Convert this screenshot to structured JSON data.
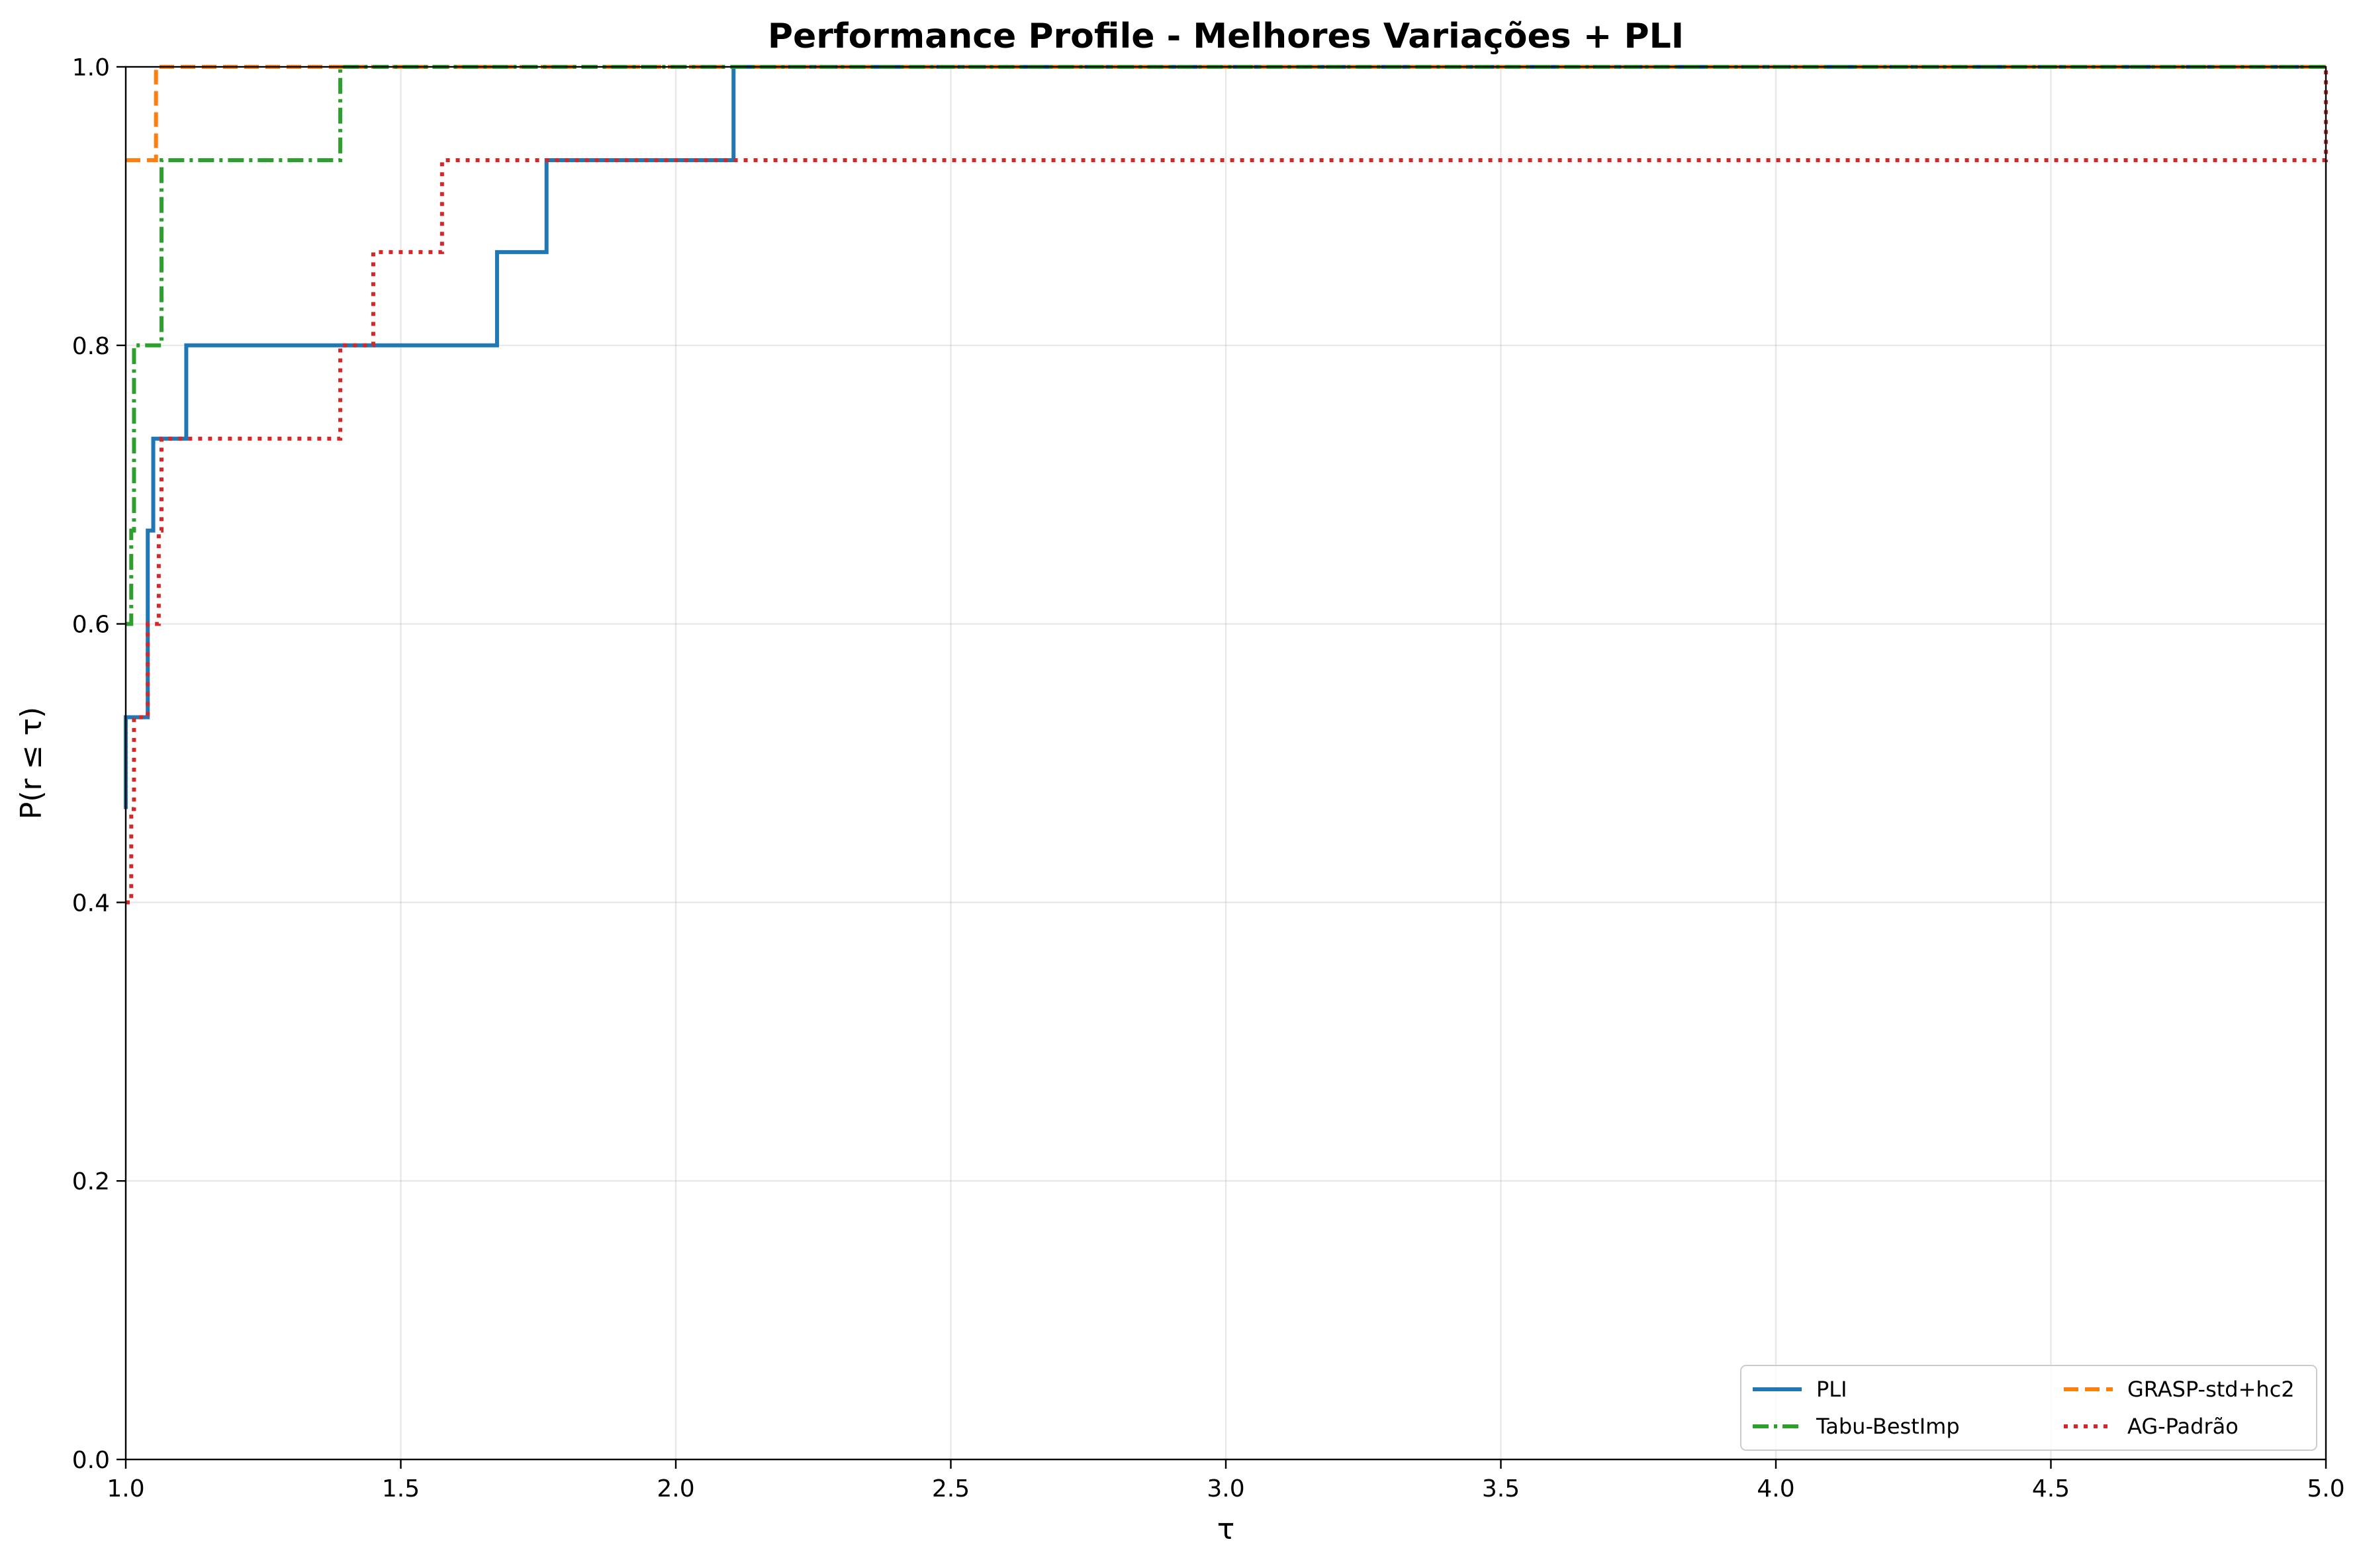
{
  "chart_data": {
    "type": "line",
    "title": "Performance Profile - Melhores Variações + PLI",
    "xlabel": "τ",
    "ylabel": "P(r ≤ τ)",
    "xlim": [
      1.0,
      5.0
    ],
    "ylim": [
      0.0,
      1.0
    ],
    "xticks": [
      "1.0",
      "1.5",
      "2.0",
      "2.5",
      "3.0",
      "3.5",
      "4.0",
      "4.5",
      "5.0"
    ],
    "yticks": [
      "0.0",
      "0.2",
      "0.4",
      "0.6",
      "0.8",
      "1.0"
    ],
    "grid": true,
    "legend_position": "lower-right",
    "legend_columns": 2,
    "series": [
      {
        "name": "PLI",
        "color": "#1f77b4",
        "style": "solid",
        "x": [
          1.0,
          1.0,
          1.04,
          1.05,
          1.11,
          1.675,
          1.765,
          2.105,
          5.0
        ],
        "y": [
          0.467,
          0.533,
          0.667,
          0.733,
          0.8,
          0.867,
          0.933,
          1.0,
          1.0
        ]
      },
      {
        "name": "GRASP-std+hc2",
        "color": "#ff7f0e",
        "style": "dashed",
        "x": [
          1.0,
          1.055,
          5.0
        ],
        "y": [
          0.933,
          1.0,
          1.0
        ]
      },
      {
        "name": "Tabu-BestImp",
        "color": "#2ca02c",
        "style": "dashdot",
        "x": [
          1.0,
          1.01,
          1.015,
          1.065,
          1.39,
          5.0
        ],
        "y": [
          0.6,
          0.667,
          0.8,
          0.933,
          1.0,
          1.0
        ]
      },
      {
        "name": "AG-Padrão",
        "color": "#d62728",
        "style": "dotted",
        "x": [
          1.0,
          1.01,
          1.015,
          1.04,
          1.06,
          1.065,
          1.39,
          1.45,
          1.575,
          5.0
        ],
        "y": [
          0.4,
          0.467,
          0.533,
          0.6,
          0.667,
          0.733,
          0.8,
          0.867,
          0.933,
          1.0
        ]
      }
    ]
  }
}
